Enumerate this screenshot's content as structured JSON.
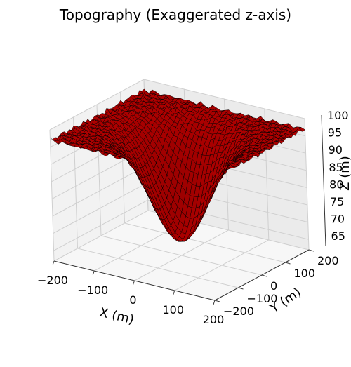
{
  "chart_data": {
    "type": "surface3d",
    "title": "Topography (Exaggerated z-axis)",
    "xlabel": "X (m)",
    "ylabel": "Y (m)",
    "zlabel": "Z (m)",
    "xlim": [
      -200,
      200
    ],
    "ylim": [
      -200,
      200
    ],
    "zlim": [
      62,
      100
    ],
    "x_ticks": [
      -200,
      -100,
      0,
      100,
      200
    ],
    "y_ticks": [
      -200,
      -100,
      0,
      100,
      200
    ],
    "z_ticks": [
      65,
      70,
      75,
      80,
      85,
      90,
      95,
      100
    ],
    "grid": true,
    "surface": {
      "description_formula": "z = base - depth * exp(-((x - cx)^2 + (y - cy)^2) / (2 * sigma^2)) + small roughness",
      "base": 97,
      "depth": 31,
      "center_x": 0,
      "center_y": 0,
      "sigma": 65,
      "grid_resolution": 40,
      "color": "#cc0000",
      "edge_color": "#000000"
    },
    "pane_color": "#f2f2f2",
    "grid_color": "#cfcfcf"
  }
}
